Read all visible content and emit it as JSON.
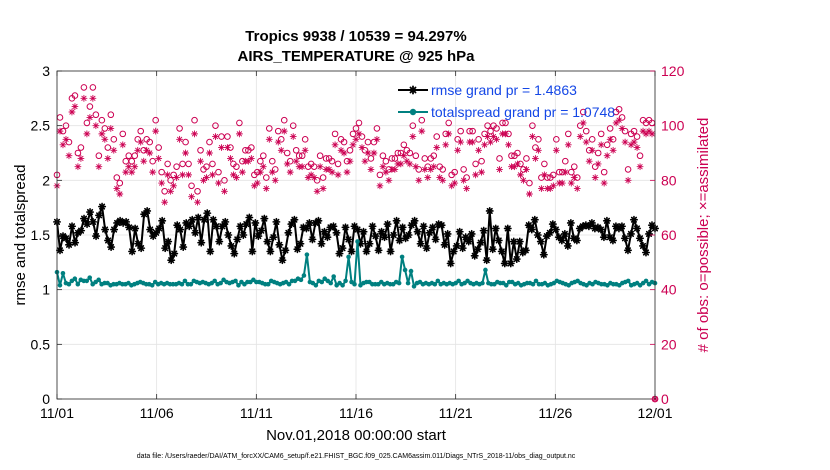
{
  "chart_data": {
    "type": "line",
    "title": "Tropics 9938 / 10539 = 94.297%",
    "subtitle": "AIRS_TEMPERATURE @ 925 hPa",
    "xlabel": "Nov.01,2018 00:00:00 start",
    "ylabel": "rmse and totalspread",
    "y2label": "# of obs: o=possible; ×=assimilated",
    "xlim": [
      0,
      30
    ],
    "ylim": [
      0,
      3
    ],
    "y2lim": [
      0,
      120
    ],
    "xticks": [
      0,
      5,
      10,
      15,
      20,
      25,
      30
    ],
    "xticklabels": [
      "11/01",
      "11/06",
      "11/11",
      "11/16",
      "11/21",
      "11/26",
      "12/01"
    ],
    "yticks": [
      0,
      0.5,
      1,
      1.5,
      2,
      2.5,
      3
    ],
    "yticklabels": [
      "0",
      "0.5",
      "1",
      "1.5",
      "2",
      "2.5",
      "3"
    ],
    "y2ticks": [
      0,
      20,
      40,
      60,
      80,
      100,
      120
    ],
    "y2ticklabels": [
      "0",
      "20",
      "40",
      "60",
      "80",
      "100",
      "120"
    ],
    "grid": true,
    "legend_position": "top-right",
    "footnote": "data file: /Users/raeder/DAI/ATM_forcXX/CAM6_setup/f.e21.FHIST_BGC.f09_025.CAM6assim.011/Diags_NTrS_2018-11/obs_diag_output.nc",
    "series": [
      {
        "name": "rmse grand pr = 1.4863",
        "axis": "left",
        "color": "#000000",
        "marker": "star",
        "values": [
          1.62,
          1.36,
          1.49,
          1.47,
          1.41,
          1.58,
          1.43,
          1.52,
          1.54,
          1.65,
          1.6,
          1.71,
          1.62,
          1.49,
          1.68,
          1.76,
          1.55,
          1.45,
          1.39,
          1.55,
          1.61,
          1.63,
          1.61,
          1.62,
          1.57,
          1.35,
          1.56,
          1.42,
          1.38,
          1.69,
          1.72,
          1.55,
          1.49,
          1.52,
          1.56,
          1.63,
          1.38,
          1.44,
          1.27,
          1.33,
          1.59,
          1.55,
          1.39,
          1.61,
          1.58,
          1.64,
          1.52,
          1.66,
          1.43,
          1.64,
          1.7,
          1.35,
          1.64,
          1.58,
          1.44,
          1.58,
          1.62,
          1.5,
          1.4,
          1.33,
          1.46,
          1.58,
          1.5,
          1.6,
          1.66,
          1.35,
          1.61,
          1.49,
          1.54,
          1.65,
          1.44,
          1.35,
          1.48,
          1.62,
          1.41,
          1.27,
          1.36,
          1.52,
          1.6,
          1.64,
          1.37,
          1.42,
          1.57,
          1.56,
          1.61,
          1.46,
          1.61,
          1.63,
          1.42,
          1.53,
          1.48,
          1.57,
          1.58,
          1.52,
          1.33,
          1.38,
          1.57,
          1.46,
          1.35,
          1.58,
          1.55,
          1.42,
          1.53,
          1.35,
          1.42,
          1.58,
          1.49,
          1.36,
          1.53,
          1.48,
          1.6,
          1.35,
          1.5,
          1.63,
          1.45,
          1.57,
          1.47,
          1.5,
          1.59,
          1.63,
          1.53,
          1.42,
          1.58,
          1.38,
          1.52,
          1.57,
          1.46,
          1.6,
          1.59,
          1.41,
          1.51,
          1.24,
          1.35,
          1.4,
          1.53,
          1.38,
          1.48,
          1.44,
          1.51,
          1.31,
          1.37,
          1.43,
          1.54,
          1.27,
          1.72,
          1.37,
          1.56,
          1.45,
          1.35,
          1.24,
          1.56,
          1.24,
          1.44,
          1.28,
          1.44,
          1.34,
          1.36,
          1.59,
          1.55,
          1.64,
          1.5,
          1.44,
          1.32,
          1.49,
          1.52,
          1.6,
          1.55,
          1.48,
          1.45,
          1.51,
          1.4,
          1.61,
          1.47,
          1.45,
          1.56,
          1.58,
          1.59,
          1.58,
          1.61,
          1.56,
          1.57,
          1.55,
          1.48,
          1.63,
          1.48,
          1.45,
          1.58,
          1.56,
          1.58,
          1.47,
          1.36,
          1.51,
          1.64,
          1.56,
          1.47,
          1.4,
          1.34,
          1.51,
          1.59,
          1.56
        ]
      },
      {
        "name": "totalspread grand pr = 1.0748",
        "axis": "left",
        "color": "#008080",
        "marker": "dot",
        "values": [
          1.16,
          1.04,
          1.15,
          1.06,
          1.05,
          1.08,
          1.1,
          1.05,
          1.09,
          1.08,
          1.08,
          1.11,
          1.05,
          1.07,
          1.09,
          1.05,
          1.06,
          1.06,
          1.04,
          1.05,
          1.05,
          1.06,
          1.05,
          1.05,
          1.06,
          1.04,
          1.05,
          1.06,
          1.07,
          1.06,
          1.05,
          1.05,
          1.04,
          1.07,
          1.05,
          1.06,
          1.05,
          1.06,
          1.05,
          1.05,
          1.05,
          1.06,
          1.05,
          1.08,
          1.05,
          1.05,
          1.08,
          1.07,
          1.06,
          1.07,
          1.06,
          1.05,
          1.06,
          1.08,
          1.05,
          1.06,
          1.09,
          1.07,
          1.06,
          1.07,
          1.08,
          1.04,
          1.07,
          1.05,
          1.07,
          1.07,
          1.09,
          1.07,
          1.07,
          1.06,
          1.05,
          1.05,
          1.08,
          1.07,
          1.06,
          1.05,
          1.06,
          1.07,
          1.05,
          1.08,
          1.08,
          1.1,
          1.09,
          1.13,
          1.32,
          1.07,
          1.06,
          1.04,
          1.08,
          1.07,
          1.1,
          1.08,
          1.06,
          1.12,
          1.04,
          1.06,
          1.04,
          1.08,
          1.3,
          1.07,
          1.05,
          1.44,
          1.04,
          1.06,
          1.07,
          1.07,
          1.05,
          1.05,
          1.05,
          1.07,
          1.05,
          1.06,
          1.05,
          1.05,
          1.07,
          1.06,
          1.3,
          1.18,
          1.06,
          1.17,
          1.03,
          1.06,
          1.07,
          1.05,
          1.06,
          1.05,
          1.06,
          1.05,
          1.08,
          1.05,
          1.06,
          1.05,
          1.06,
          1.05,
          1.06,
          1.08,
          1.05,
          1.06,
          1.08,
          1.06,
          1.05,
          1.06,
          1.05,
          1.06,
          1.18,
          1.06,
          1.05,
          1.05,
          1.07,
          1.06,
          1.06,
          1.04,
          1.07,
          1.07,
          1.05,
          1.06,
          1.04,
          1.05,
          1.06,
          1.06,
          1.05,
          1.08,
          1.05,
          1.05,
          1.06,
          1.04,
          1.05,
          1.06,
          1.08,
          1.07,
          1.06,
          1.05,
          1.04,
          1.06,
          1.07,
          1.08,
          1.06,
          1.05,
          1.04,
          1.06,
          1.05,
          1.07,
          1.06,
          1.05,
          1.05,
          1.04,
          1.06,
          1.05,
          1.05,
          1.04,
          1.06,
          1.07,
          1.08,
          1.04,
          1.05,
          1.06,
          1.04,
          1.06,
          1.08,
          1.05,
          1.07,
          1.06
        ]
      },
      {
        "name": "obs possible",
        "axis": "right",
        "color": "#cc0052",
        "marker": "circle",
        "values": [
          82,
          103,
          98,
          100,
          94,
          110,
          111,
          90,
          92,
          114,
          101,
          107,
          114,
          104,
          89,
          102,
          99,
          92,
          104,
          95,
          81,
          79,
          97,
          87,
          89,
          87,
          89,
          95,
          98,
          91,
          95,
          94,
          87,
          102,
          92,
          83,
          76,
          86,
          80,
          82,
          85,
          99,
          86,
          94,
          86,
          78,
          102,
          76,
          91,
          84,
          85,
          94,
          86,
          100,
          83,
          96,
          80,
          96,
          92,
          86,
          85,
          101,
          87,
          91,
          91,
          92,
          82,
          83,
          87,
          89,
          81,
          99,
          87,
          84,
          98,
          95,
          102,
          90,
          87,
          100,
          91,
          89,
          89,
          95,
          85,
          86,
          85,
          80,
          89,
          81,
          88,
          88,
          87,
          97,
          86,
          95,
          94,
          87,
          91,
          97,
          99,
          101,
          96,
          91,
          94,
          88,
          94,
          99,
          82,
          89,
          87,
          84,
          88,
          88,
          90,
          90,
          93,
          91,
          90,
          100,
          89,
          84,
          102,
          88,
          85,
          88,
          89,
          96,
          85,
          84,
          97,
          101,
          82,
          83,
          95,
          98,
          84,
          81,
          98,
          98,
          86,
          95,
          87,
          97,
          100,
          98,
          100,
          99,
          88,
          101,
          101,
          97,
          89,
          89,
          90,
          86,
          84,
          88,
          79,
          100,
          92,
          95,
          81,
          86,
          81,
          81,
          82,
          95,
          83,
          83,
          87,
          97,
          83,
          85,
          81,
          100,
          105,
          98,
          91,
          95,
          85,
          90,
          97,
          83,
          93,
          99,
          95,
          105,
          106,
          103,
          98,
          84,
          97,
          98,
          96,
          89,
          102,
          101,
          102,
          101,
          0
        ]
      },
      {
        "name": "obs assimilated",
        "axis": "right",
        "color": "#cc0052",
        "marker": "asterisk",
        "values": [
          78,
          98,
          93,
          95,
          89,
          105,
          107,
          85,
          88,
          110,
          97,
          103,
          110,
          100,
          85,
          97,
          95,
          88,
          99,
          91,
          77,
          75,
          93,
          83,
          85,
          83,
          85,
          91,
          94,
          87,
          91,
          90,
          83,
          98,
          88,
          79,
          72,
          82,
          76,
          78,
          81,
          95,
          82,
          90,
          82,
          74,
          97,
          72,
          87,
          80,
          81,
          90,
          82,
          96,
          79,
          92,
          76,
          92,
          88,
          82,
          81,
          97,
          83,
          87,
          87,
          88,
          78,
          79,
          83,
          85,
          77,
          95,
          83,
          80,
          94,
          91,
          98,
          86,
          83,
          96,
          87,
          85,
          85,
          91,
          81,
          82,
          81,
          76,
          85,
          77,
          84,
          84,
          83,
          93,
          82,
          91,
          90,
          83,
          87,
          93,
          95,
          97,
          92,
          87,
          90,
          84,
          90,
          95,
          78,
          85,
          83,
          80,
          84,
          84,
          86,
          86,
          89,
          87,
          86,
          96,
          85,
          80,
          98,
          84,
          81,
          84,
          85,
          92,
          81,
          80,
          93,
          97,
          78,
          79,
          91,
          94,
          80,
          77,
          94,
          94,
          82,
          91,
          83,
          93,
          96,
          94,
          96,
          95,
          84,
          97,
          97,
          93,
          85,
          85,
          86,
          82,
          80,
          84,
          75,
          96,
          88,
          91,
          77,
          82,
          77,
          77,
          78,
          91,
          79,
          79,
          83,
          93,
          79,
          81,
          77,
          96,
          101,
          94,
          87,
          91,
          81,
          86,
          93,
          79,
          89,
          95,
          91,
          101,
          102,
          99,
          94,
          80,
          93,
          94,
          92,
          85,
          98,
          97,
          98,
          97,
          0
        ]
      }
    ]
  }
}
